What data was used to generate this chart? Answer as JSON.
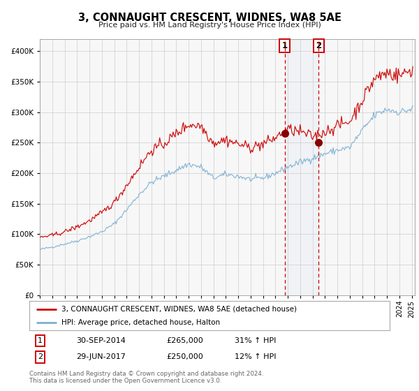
{
  "title": "3, CONNAUGHT CRESCENT, WIDNES, WA8 5AE",
  "subtitle": "Price paid vs. HM Land Registry's House Price Index (HPI)",
  "legend_line1": "3, CONNAUGHT CRESCENT, WIDNES, WA8 5AE (detached house)",
  "legend_line2": "HPI: Average price, detached house, Halton",
  "transaction1_date": "30-SEP-2014",
  "transaction1_price": 265000,
  "transaction1_hpi": "31% ↑ HPI",
  "transaction2_date": "29-JUN-2017",
  "transaction2_price": 250000,
  "transaction2_hpi": "12% ↑ HPI",
  "footer": "Contains HM Land Registry data © Crown copyright and database right 2024.\nThis data is licensed under the Open Government Licence v3.0.",
  "red_color": "#cc0000",
  "blue_color": "#7ab0d4",
  "ylim": [
    0,
    420000
  ],
  "yticks": [
    0,
    50000,
    100000,
    150000,
    200000,
    250000,
    300000,
    350000,
    400000
  ],
  "hpi_year_vals": {
    "1995": 75000,
    "1996": 79000,
    "1997": 84000,
    "1998": 89000,
    "1999": 96000,
    "2000": 104000,
    "2001": 117000,
    "2002": 140000,
    "2003": 165000,
    "2004": 185000,
    "2005": 195000,
    "2006": 205000,
    "2007": 215000,
    "2008": 210000,
    "2009": 192000,
    "2010": 198000,
    "2011": 195000,
    "2012": 190000,
    "2013": 192000,
    "2014": 200000,
    "2015": 210000,
    "2016": 218000,
    "2017": 225000,
    "2018": 232000,
    "2019": 238000,
    "2020": 242000,
    "2021": 270000,
    "2022": 295000,
    "2023": 305000,
    "2024": 300000,
    "2025": 305000
  },
  "prop_year_vals": {
    "1995": 95000,
    "1996": 98000,
    "1997": 104000,
    "1998": 112000,
    "1999": 122000,
    "2000": 135000,
    "2001": 152000,
    "2002": 180000,
    "2003": 210000,
    "2004": 238000,
    "2005": 248000,
    "2006": 265000,
    "2007": 280000,
    "2008": 278000,
    "2009": 250000,
    "2010": 255000,
    "2011": 248000,
    "2012": 242000,
    "2013": 248000,
    "2014": 258000,
    "2015": 272000,
    "2016": 268000,
    "2017": 260000,
    "2018": 268000,
    "2019": 278000,
    "2020": 285000,
    "2021": 320000,
    "2022": 355000,
    "2023": 365000,
    "2024": 360000,
    "2025": 370000
  }
}
